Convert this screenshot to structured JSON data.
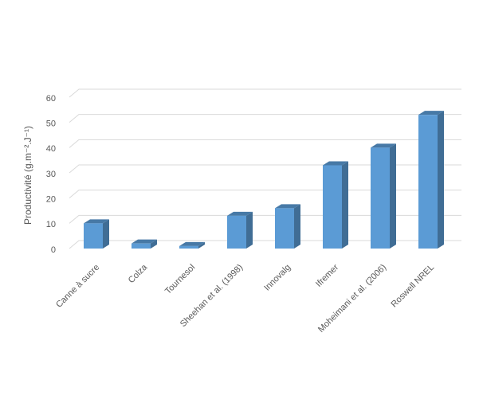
{
  "chart_data": {
    "type": "bar3d",
    "y_label": "Productivité (g.m⁻².J⁻¹)",
    "categories": [
      "Canne à sucre",
      "Colza",
      "Tournesol",
      "Sheehan et al. (1998)",
      "Innovalg",
      "Ifremer",
      "Moheimani et al. (2006)",
      "Roswell NREL"
    ],
    "values": [
      10,
      2,
      1,
      13,
      16,
      33,
      40,
      53
    ],
    "color": "#5b9bd5",
    "ylim": [
      0,
      60
    ],
    "yticks": [
      0,
      10,
      20,
      30,
      40,
      50,
      60
    ],
    "grid": true
  }
}
